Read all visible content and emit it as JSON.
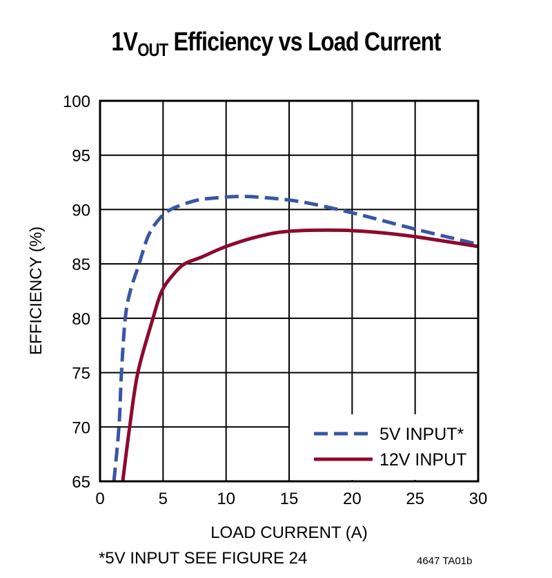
{
  "chart_data": {
    "type": "line",
    "title_parts": {
      "main": "1V",
      "sub": "OUT",
      "rest": " Efficiency vs Load Current"
    },
    "xlabel": "LOAD CURRENT (A)",
    "ylabel": "EFFICIENCY (%)",
    "xlim": [
      0,
      30
    ],
    "ylim": [
      65,
      100
    ],
    "xticks": [
      0,
      5,
      10,
      15,
      20,
      25,
      30
    ],
    "yticks": [
      65,
      70,
      75,
      80,
      85,
      90,
      95,
      100
    ],
    "grid": true,
    "legend_position": "bottom-right",
    "series": [
      {
        "name": "5V INPUT*",
        "color": "#3a55a4",
        "dash": true,
        "x": [
          1.1,
          1.5,
          1.7,
          2.0,
          2.4,
          3.1,
          3.8,
          4.6,
          5.6,
          7.5,
          9,
          11,
          13,
          16,
          20,
          25,
          30
        ],
        "y": [
          65,
          70,
          75,
          80,
          82.5,
          85,
          87.5,
          89,
          90,
          90.8,
          91.05,
          91.2,
          91.1,
          90.7,
          89.7,
          88.2,
          86.8
        ]
      },
      {
        "name": "12V INPUT",
        "color": "#8c0a2e",
        "dash": false,
        "x": [
          1.8,
          2.35,
          3.0,
          4.2,
          4.9,
          5.8,
          6.7,
          8,
          10,
          12.5,
          15,
          19,
          22,
          25,
          30
        ],
        "y": [
          65,
          70,
          75,
          80,
          82.5,
          84,
          85,
          85.6,
          86.6,
          87.5,
          88,
          88.1,
          87.9,
          87.5,
          86.6
        ]
      }
    ]
  },
  "footnote": "*5V INPUT SEE FIGURE 24",
  "figure_code": "4647 TA01b"
}
